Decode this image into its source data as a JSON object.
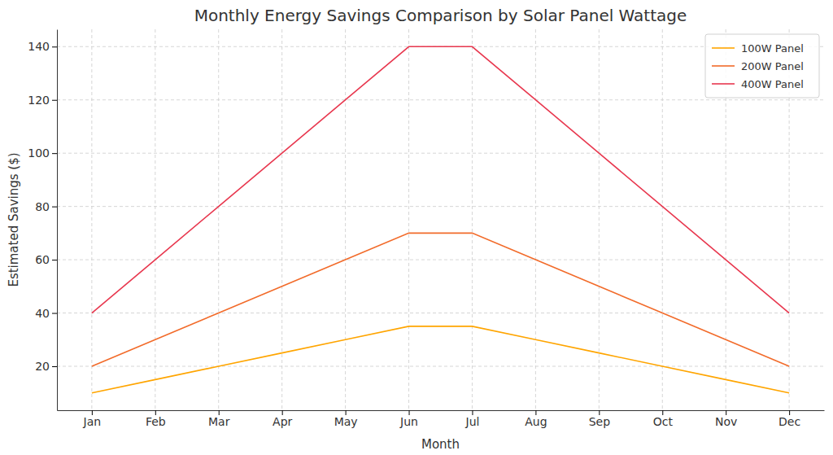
{
  "chart_data": {
    "type": "line",
    "title": "Monthly Energy Savings Comparison by Solar Panel Wattage",
    "x_label": "Month",
    "y_label": "Estimated Savings ($)",
    "categories": [
      "Jan",
      "Feb",
      "Mar",
      "Apr",
      "May",
      "Jun",
      "Jul",
      "Aug",
      "Sep",
      "Oct",
      "Nov",
      "Dec"
    ],
    "series": [
      {
        "name": "100W Panel",
        "color": "#ffa500",
        "values": [
          10,
          15,
          20,
          25,
          30,
          35,
          35,
          30,
          25,
          20,
          15,
          10
        ]
      },
      {
        "name": "200W Panel",
        "color": "#f26b2a",
        "values": [
          20,
          30,
          40,
          50,
          60,
          70,
          70,
          60,
          50,
          40,
          30,
          20
        ]
      },
      {
        "name": "400W Panel",
        "color": "#e8384f",
        "values": [
          40,
          60,
          80,
          100,
          120,
          140,
          140,
          120,
          100,
          80,
          60,
          40
        ]
      }
    ],
    "ylim": [
      3.5,
      146.5
    ],
    "yticks": [
      20,
      40,
      60,
      80,
      100,
      120,
      140
    ],
    "grid": true,
    "legend": "upper right"
  }
}
